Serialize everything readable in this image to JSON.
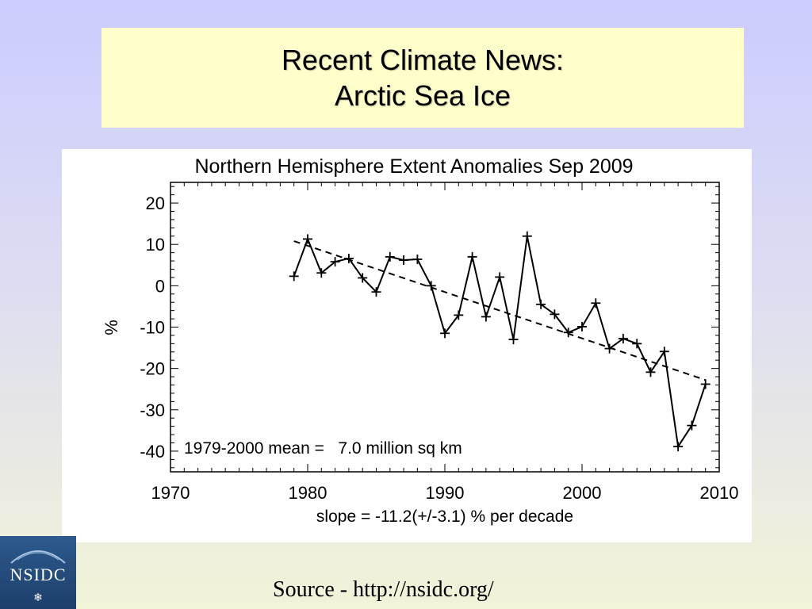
{
  "slide": {
    "title_line1": "Recent Climate News:",
    "title_line2": "Arctic Sea Ice",
    "source": "Source - http://nsidc.org/",
    "logo_text": "NSIDC",
    "background_top": "#ccccff",
    "title_box_color": "#ffffcc",
    "logo_color": "#2d5a8e"
  },
  "chart_data": {
    "type": "line",
    "title": "Northern Hemisphere Extent Anomalies Sep 2009",
    "xlabel": "",
    "ylabel": "%",
    "xlim": [
      1970,
      2010
    ],
    "ylim": [
      -45,
      25
    ],
    "x_ticks": [
      1970,
      1980,
      1990,
      2000,
      2010
    ],
    "y_ticks": [
      20,
      10,
      0,
      -10,
      -20,
      -30,
      -40
    ],
    "grid": false,
    "annotations": {
      "mean": "1979-2000 mean =   7.0 million sq km",
      "slope": "slope = -11.2(+/-3.1) % per decade"
    },
    "series": [
      {
        "style": "solid-with-plus-markers",
        "x": [
          1979,
          1980,
          1981,
          1982,
          1983,
          1984,
          1985,
          1986,
          1987,
          1988,
          1989,
          1990,
          1991,
          1992,
          1993,
          1994,
          1995,
          1996,
          1997,
          1998,
          1999,
          2000,
          2001,
          2002,
          2003,
          2004,
          2005,
          2006,
          2007,
          2008,
          2009
        ],
        "y": [
          2.3,
          11.3,
          3.1,
          5.8,
          6.6,
          1.9,
          -1.5,
          7.0,
          6.2,
          6.4,
          0.0,
          -11.5,
          -7.1,
          7.0,
          -7.5,
          2.1,
          -13.0,
          12.0,
          -4.5,
          -6.9,
          -11.3,
          -9.9,
          -4.2,
          -15.2,
          -12.8,
          -14.0,
          -20.9,
          -15.9,
          -38.9,
          -33.8,
          -23.8
        ]
      },
      {
        "style": "dashed-trend",
        "x": [
          1979,
          2009
        ],
        "y": [
          10.8,
          -22.8
        ]
      }
    ]
  }
}
